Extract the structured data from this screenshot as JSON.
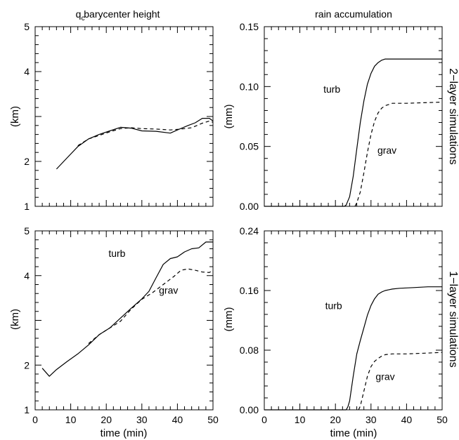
{
  "figure": {
    "col_titles": [
      "q barycenter height",
      "rain accumulation"
    ],
    "col_title_subscript": "c",
    "row_labels": [
      "2−layer simulations",
      "1−layer simulations"
    ],
    "xlabel": "time (min)",
    "ylabel_left": "(km)",
    "ylabel_right": "(mm)"
  },
  "chart_data": [
    {
      "type": "line",
      "panel": "top-left",
      "title": "q_c barycenter height",
      "xlabel": "",
      "ylabel": "(km)",
      "xlim": [
        0,
        50
      ],
      "ylim": [
        1,
        5
      ],
      "x_ticks": [
        0,
        10,
        20,
        30,
        40,
        50
      ],
      "y_ticks": [
        1,
        2,
        3,
        4,
        5
      ],
      "y_tick_labels": [
        "1",
        "2",
        "",
        "4",
        "5"
      ],
      "show_x_tick_labels": false,
      "series": [
        {
          "style": "solid",
          "x": [
            6,
            9,
            12,
            15,
            18,
            21,
            24,
            27,
            30,
            34,
            38,
            40,
            43,
            45,
            47,
            49,
            50
          ],
          "y": [
            1.83,
            2.08,
            2.33,
            2.5,
            2.6,
            2.68,
            2.76,
            2.74,
            2.68,
            2.67,
            2.63,
            2.7,
            2.8,
            2.86,
            2.96,
            2.96,
            2.9
          ]
        },
        {
          "style": "dashed",
          "x": [
            12,
            15,
            18,
            21,
            24,
            27,
            30,
            34,
            38,
            41,
            44,
            47,
            49,
            50
          ],
          "y": [
            2.35,
            2.5,
            2.58,
            2.66,
            2.73,
            2.75,
            2.73,
            2.72,
            2.7,
            2.72,
            2.75,
            2.85,
            2.9,
            2.87
          ]
        }
      ],
      "annotations": []
    },
    {
      "type": "line",
      "panel": "top-right",
      "title": "rain accumulation",
      "xlabel": "",
      "ylabel": "(mm)",
      "xlim": [
        0,
        50
      ],
      "ylim": [
        0,
        0.15
      ],
      "x_ticks": [
        0,
        10,
        20,
        30,
        40,
        50
      ],
      "y_ticks": [
        0,
        0.05,
        0.1,
        0.15
      ],
      "y_tick_labels": [
        "0.00",
        "0.05",
        "0.10",
        "0.15"
      ],
      "show_x_tick_labels": false,
      "series": [
        {
          "style": "solid",
          "x": [
            0,
            22.5,
            23,
            24,
            25,
            26,
            27,
            28,
            29,
            30,
            31,
            32,
            33,
            34,
            36,
            40,
            50
          ],
          "y": [
            0,
            0,
            0.001,
            0.008,
            0.025,
            0.048,
            0.07,
            0.088,
            0.102,
            0.111,
            0.117,
            0.12,
            0.122,
            0.123,
            0.123,
            0.123,
            0.123
          ]
        },
        {
          "style": "dashed",
          "x": [
            25.5,
            26,
            27,
            28,
            29,
            30,
            31,
            32,
            33,
            34,
            36,
            40,
            50
          ],
          "y": [
            0,
            0.003,
            0.012,
            0.028,
            0.045,
            0.06,
            0.071,
            0.078,
            0.082,
            0.084,
            0.086,
            0.086,
            0.087
          ]
        }
      ],
      "annotations": [
        {
          "text": "turb",
          "x": 19,
          "y": 0.095
        },
        {
          "text": "grav",
          "x": 34.5,
          "y": 0.044
        }
      ]
    },
    {
      "type": "line",
      "panel": "bottom-left",
      "title": "",
      "xlabel": "time (min)",
      "ylabel": "(km)",
      "xlim": [
        0,
        50
      ],
      "ylim": [
        1,
        5
      ],
      "x_ticks": [
        0,
        10,
        20,
        30,
        40,
        50
      ],
      "y_ticks": [
        1,
        2,
        3,
        4,
        5
      ],
      "y_tick_labels": [
        "1",
        "2",
        "",
        "4",
        "5"
      ],
      "show_x_tick_labels": true,
      "series": [
        {
          "style": "solid",
          "x": [
            2,
            4,
            6,
            9,
            12,
            15,
            18,
            21,
            24,
            27,
            30,
            32,
            34,
            36,
            38,
            40,
            42,
            44,
            46,
            48,
            50
          ],
          "y": [
            1.93,
            1.75,
            1.9,
            2.08,
            2.25,
            2.45,
            2.68,
            2.83,
            3.05,
            3.27,
            3.48,
            3.65,
            3.95,
            4.25,
            4.38,
            4.42,
            4.53,
            4.6,
            4.62,
            4.75,
            4.75
          ]
        },
        {
          "style": "dashed",
          "x": [
            15,
            18,
            21,
            24,
            27,
            30,
            33,
            36,
            39,
            41,
            43,
            45,
            47,
            49,
            50
          ],
          "y": [
            2.48,
            2.68,
            2.83,
            2.98,
            3.25,
            3.47,
            3.62,
            3.8,
            3.98,
            4.12,
            4.15,
            4.12,
            4.08,
            4.07,
            4.12
          ]
        }
      ],
      "annotations": [
        {
          "text": "turb",
          "x": 23,
          "y": 4.42
        },
        {
          "text": "grav",
          "x": 37.5,
          "y": 3.6
        }
      ]
    },
    {
      "type": "line",
      "panel": "bottom-right",
      "title": "",
      "xlabel": "time (min)",
      "ylabel": "(mm)",
      "xlim": [
        0,
        50
      ],
      "ylim": [
        0,
        0.24
      ],
      "x_ticks": [
        0,
        10,
        20,
        30,
        40,
        50
      ],
      "y_ticks": [
        0,
        0.08,
        0.16,
        0.24
      ],
      "y_tick_labels": [
        "0.00",
        "0.08",
        "0.16",
        "0.24"
      ],
      "show_x_tick_labels": true,
      "series": [
        {
          "style": "solid",
          "x": [
            0,
            23,
            23.5,
            24,
            25,
            26,
            27,
            28,
            29,
            30,
            31,
            32,
            33,
            34,
            35,
            36,
            38,
            42,
            46,
            50
          ],
          "y": [
            0,
            0,
            0.004,
            0.012,
            0.045,
            0.075,
            0.093,
            0.11,
            0.127,
            0.14,
            0.149,
            0.155,
            0.158,
            0.16,
            0.161,
            0.162,
            0.163,
            0.164,
            0.165,
            0.165
          ]
        },
        {
          "style": "dashed",
          "x": [
            26.5,
            27,
            28,
            29,
            30,
            31,
            32,
            33,
            34,
            36,
            40,
            45,
            50
          ],
          "y": [
            0,
            0.005,
            0.025,
            0.045,
            0.058,
            0.065,
            0.069,
            0.072,
            0.074,
            0.075,
            0.075,
            0.076,
            0.077
          ]
        }
      ],
      "annotations": [
        {
          "text": "turb",
          "x": 19.5,
          "y": 0.135
        },
        {
          "text": "grav",
          "x": 34,
          "y": 0.04
        }
      ]
    }
  ]
}
